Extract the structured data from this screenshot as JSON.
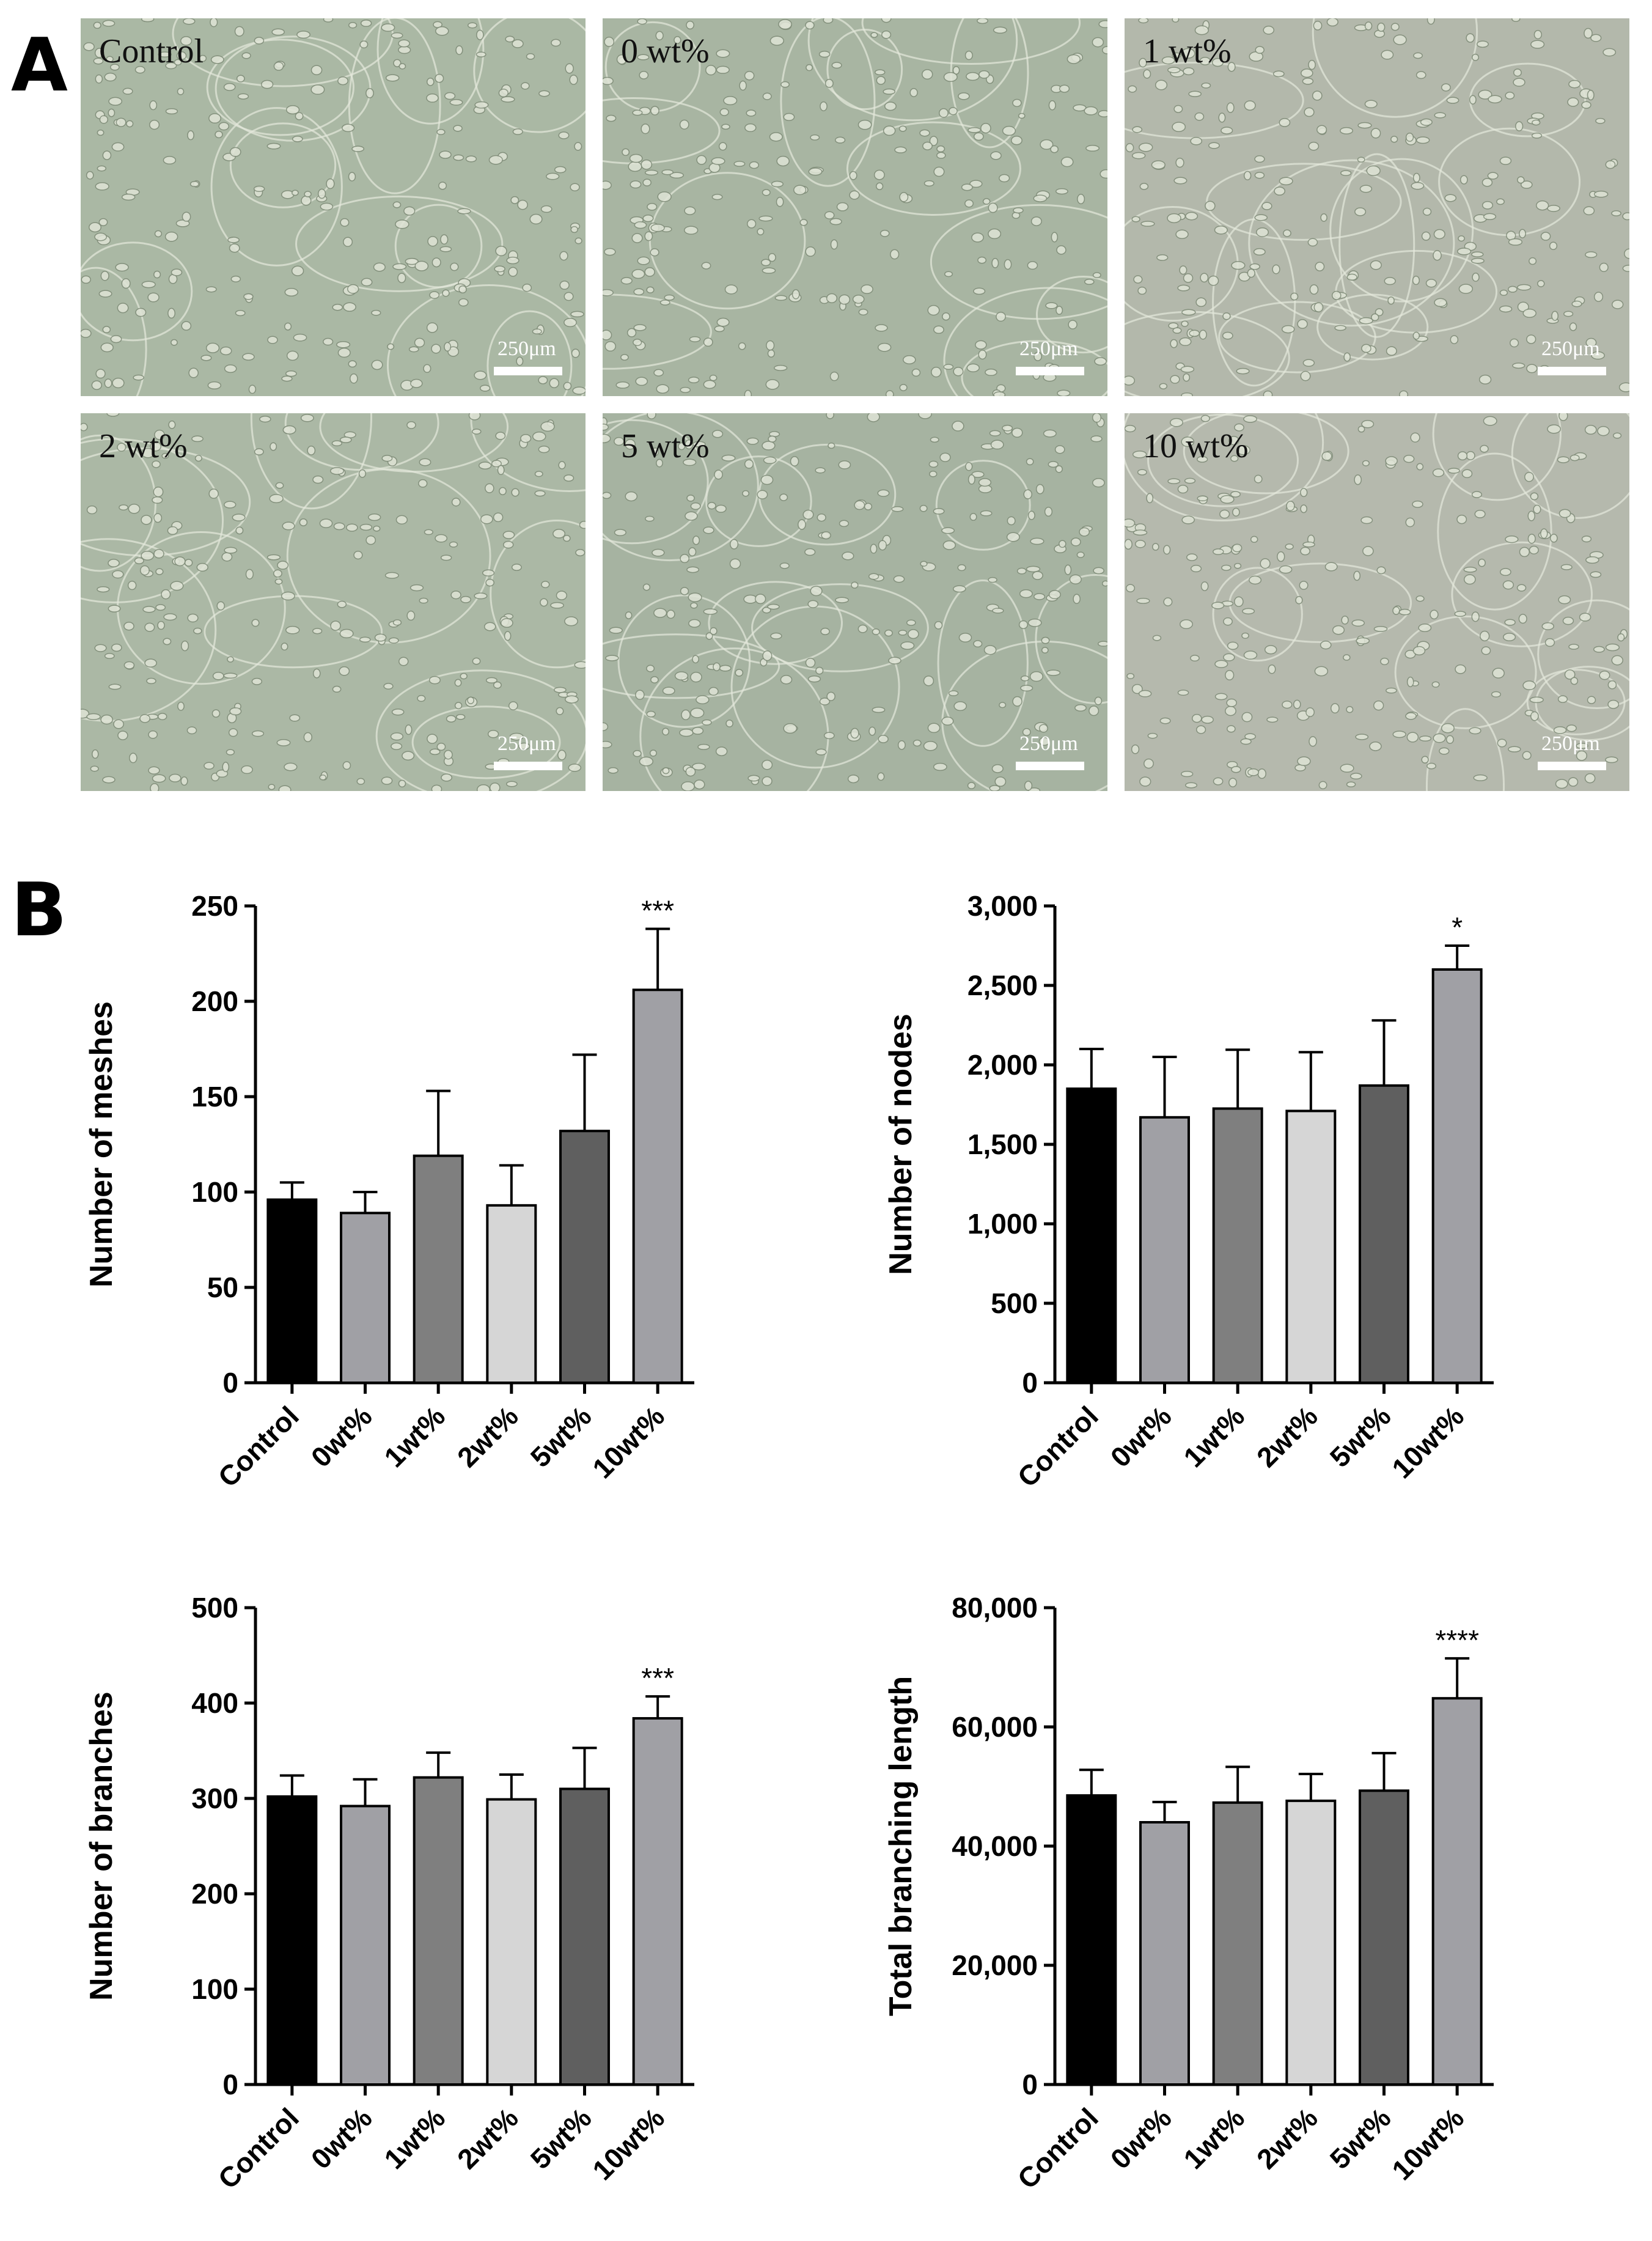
{
  "panel_a": {
    "letter": "A",
    "images": [
      {
        "label": "Control",
        "scale": "250μm",
        "tone": "#aab8a4"
      },
      {
        "label": "0 wt%",
        "scale": "250μm",
        "tone": "#a8b5a2"
      },
      {
        "label": "1 wt%",
        "scale": "250μm",
        "tone": "#b3b8ab"
      },
      {
        "label": "2 wt%",
        "scale": "250μm",
        "tone": "#abb8a5"
      },
      {
        "label": "5 wt%",
        "scale": "250μm",
        "tone": "#a6b3a1"
      },
      {
        "label": "10 wt%",
        "scale": "250μm",
        "tone": "#b5b9ad"
      }
    ]
  },
  "panel_b": {
    "letter": "B"
  },
  "chart_data": [
    {
      "type": "bar",
      "categories": [
        "Control",
        "0wt%",
        "1wt%",
        "2wt%",
        "5wt%",
        "10wt%"
      ],
      "values": [
        96,
        89,
        119,
        93,
        132,
        206
      ],
      "errors": [
        9,
        11,
        34,
        21,
        40,
        32
      ],
      "significance": [
        "",
        "",
        "",
        "",
        "",
        "***"
      ],
      "ylabel": "Number of meshes",
      "ylim": [
        0,
        250
      ],
      "yticks": [
        "0",
        "50",
        "100",
        "150",
        "200",
        "250"
      ],
      "bar_colors": [
        "#000000",
        "#a0a0a5",
        "#7f7f7f",
        "#d6d6d6",
        "#5f5f5f",
        "#a0a0a5"
      ]
    },
    {
      "type": "bar",
      "categories": [
        "Control",
        "0wt%",
        "1wt%",
        "2wt%",
        "5wt%",
        "10wt%"
      ],
      "values": [
        1850,
        1670,
        1725,
        1710,
        1870,
        2600
      ],
      "errors": [
        250,
        380,
        370,
        370,
        410,
        150
      ],
      "significance": [
        "",
        "",
        "",
        "",
        "",
        "*"
      ],
      "ylabel": "Number of nodes",
      "ylim": [
        0,
        3000
      ],
      "yticks": [
        "0",
        "500",
        "1,000",
        "1,500",
        "2,000",
        "2,500",
        "3,000"
      ],
      "bar_colors": [
        "#000000",
        "#a0a0a5",
        "#7f7f7f",
        "#d6d6d6",
        "#5f5f5f",
        "#a0a0a5"
      ]
    },
    {
      "type": "bar",
      "categories": [
        "Control",
        "0wt%",
        "1wt%",
        "2wt%",
        "5wt%",
        "10wt%"
      ],
      "values": [
        302,
        292,
        322,
        299,
        310,
        384
      ],
      "errors": [
        22,
        28,
        26,
        26,
        43,
        23
      ],
      "significance": [
        "",
        "",
        "",
        "",
        "",
        "***"
      ],
      "ylabel": "Number of branches",
      "ylim": [
        0,
        500
      ],
      "yticks": [
        "0",
        "100",
        "200",
        "300",
        "400",
        "500"
      ],
      "bar_colors": [
        "#000000",
        "#a0a0a5",
        "#7f7f7f",
        "#d6d6d6",
        "#5f5f5f",
        "#a0a0a5"
      ]
    },
    {
      "type": "bar",
      "categories": [
        "Control",
        "0wt%",
        "1wt%",
        "2wt%",
        "5wt%",
        "10wt%"
      ],
      "values": [
        48500,
        44000,
        47300,
        47600,
        49300,
        64800
      ],
      "errors": [
        4300,
        3400,
        6000,
        4500,
        6300,
        6700
      ],
      "significance": [
        "",
        "",
        "",
        "",
        "",
        "****"
      ],
      "ylabel": "Total branching length",
      "ylim": [
        0,
        80000
      ],
      "yticks": [
        "0",
        "20,000",
        "40,000",
        "60,000",
        "80,000"
      ],
      "bar_colors": [
        "#000000",
        "#a0a0a5",
        "#7f7f7f",
        "#d6d6d6",
        "#5f5f5f",
        "#a0a0a5"
      ]
    }
  ]
}
